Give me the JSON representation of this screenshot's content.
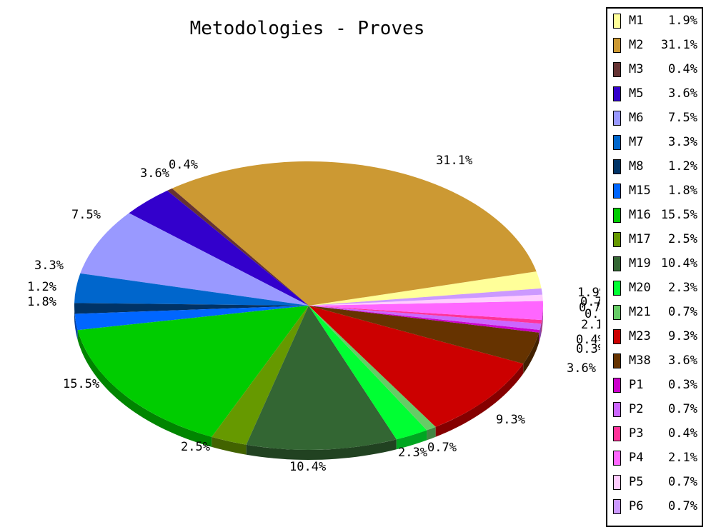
{
  "chart_data": {
    "type": "pie",
    "title": "Metodologies - Proves",
    "slices": [
      {
        "label": "M1",
        "value": 1.9,
        "display": "1.9%",
        "color": "#ffff99"
      },
      {
        "label": "M2",
        "value": 31.1,
        "display": "31.1%",
        "color": "#cc9933"
      },
      {
        "label": "M3",
        "value": 0.4,
        "display": "0.4%",
        "color": "#663333"
      },
      {
        "label": "M5",
        "value": 3.6,
        "display": "3.6%",
        "color": "#3300cc"
      },
      {
        "label": "M6",
        "value": 7.5,
        "display": "7.5%",
        "color": "#9999ff"
      },
      {
        "label": "M7",
        "value": 3.3,
        "display": "3.3%",
        "color": "#0066cc"
      },
      {
        "label": "M8",
        "value": 1.2,
        "display": "1.2%",
        "color": "#003366"
      },
      {
        "label": "M15",
        "value": 1.8,
        "display": "1.8%",
        "color": "#0066ff"
      },
      {
        "label": "M16",
        "value": 15.5,
        "display": "15.5%",
        "color": "#00cc00"
      },
      {
        "label": "M17",
        "value": 2.5,
        "display": "2.5%",
        "color": "#669900"
      },
      {
        "label": "M19",
        "value": 10.4,
        "display": "10.4%",
        "color": "#336633"
      },
      {
        "label": "M20",
        "value": 2.3,
        "display": "2.3%",
        "color": "#00ff33"
      },
      {
        "label": "M21",
        "value": 0.7,
        "display": "0.7%",
        "color": "#66cc66"
      },
      {
        "label": "M23",
        "value": 9.3,
        "display": "9.3%",
        "color": "#cc0000"
      },
      {
        "label": "M38",
        "value": 3.6,
        "display": "3.6%",
        "color": "#663300"
      },
      {
        "label": "P1",
        "value": 0.3,
        "display": "0.3%",
        "color": "#cc00cc"
      },
      {
        "label": "P2",
        "value": 0.7,
        "display": "0.7%",
        "color": "#cc66ff"
      },
      {
        "label": "P3",
        "value": 0.4,
        "display": "0.4%",
        "color": "#ff3399"
      },
      {
        "label": "P4",
        "value": 2.1,
        "display": "2.1%",
        "color": "#ff66ff"
      },
      {
        "label": "P5",
        "value": 0.7,
        "display": "0.7%",
        "color": "#ffccff"
      },
      {
        "label": "P6",
        "value": 0.7,
        "display": "0.7%",
        "color": "#cc99ff"
      }
    ],
    "legend_position": "right"
  }
}
